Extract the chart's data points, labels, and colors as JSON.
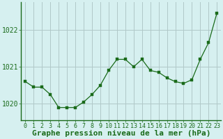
{
  "x": [
    0,
    1,
    2,
    3,
    4,
    5,
    6,
    7,
    8,
    9,
    10,
    11,
    12,
    13,
    14,
    15,
    16,
    17,
    18,
    19,
    20,
    21,
    22,
    23
  ],
  "y": [
    1020.6,
    1020.45,
    1020.45,
    1020.25,
    1019.9,
    1019.9,
    1019.9,
    1020.05,
    1020.25,
    1020.5,
    1020.9,
    1021.2,
    1021.2,
    1021.0,
    1021.2,
    1020.9,
    1020.85,
    1020.7,
    1020.6,
    1020.55,
    1020.65,
    1021.2,
    1021.65,
    1022.45
  ],
  "line_color": "#1a6b1a",
  "marker_color": "#1a6b1a",
  "bg_color": "#d6f0f0",
  "grid_color": "#b0c8c8",
  "label_color": "#1a6b1a",
  "xlabel": "Graphe pression niveau de la mer (hPa)",
  "yticks": [
    1020,
    1021,
    1022
  ],
  "ylim": [
    1019.55,
    1022.75
  ],
  "xlim": [
    -0.5,
    23.5
  ],
  "title_fontsize": 8,
  "tick_fontsize": 6,
  "marker_size": 2.5
}
